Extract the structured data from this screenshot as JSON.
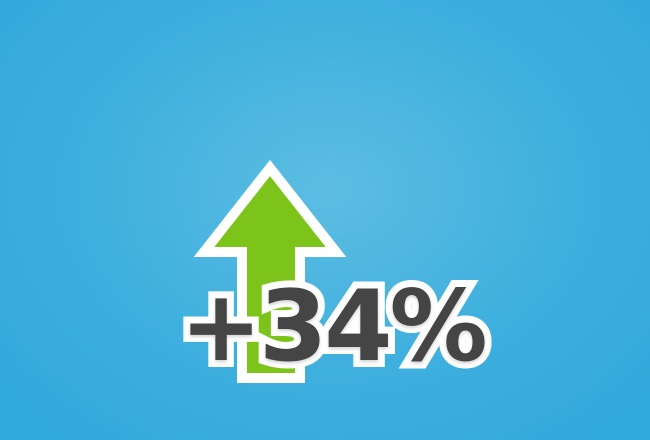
{
  "stat": {
    "value": "+34%",
    "trend": "up"
  },
  "icon": {
    "name": "arrow-up-icon"
  },
  "colors": {
    "background": "#3fb0de",
    "arrow_fill": "#7cc419",
    "arrow_outline": "#ffffff",
    "text": "#454545",
    "text_outline": "#ffffff"
  }
}
